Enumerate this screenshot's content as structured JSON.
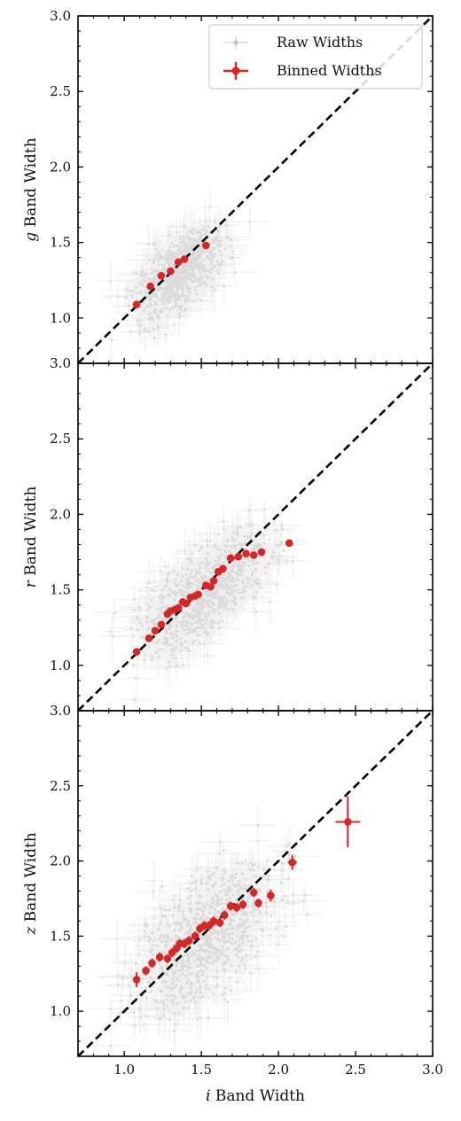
{
  "chart_data": [
    {
      "type": "scatter",
      "xlabel_var": "",
      "xlabel_rest": "",
      "ylabel_var": "g",
      "ylabel_rest": " Band Width",
      "xlim": [
        0.7,
        3.0
      ],
      "ylim": [
        0.7,
        3.0
      ],
      "xticks": [],
      "yticks": [
        1.0,
        1.5,
        2.0,
        2.5,
        3.0
      ],
      "reference_line": "y = x",
      "legend": {
        "placement": "top-right",
        "entries": [
          "Raw Widths",
          "Binned Widths"
        ],
        "colors": [
          "#b5b5b5",
          "#d62728"
        ]
      },
      "raw": {
        "name": "Raw Widths",
        "color": "#808080",
        "center": [
          1.35,
          1.3
        ],
        "spread": 0.13,
        "slope": 0.65,
        "ysd": 0.11,
        "xmin": 0.85,
        "xmax": 1.9
      },
      "series": [
        {
          "name": "Binned Widths",
          "color": "#d62728",
          "x": [
            1.08,
            1.17,
            1.24,
            1.3,
            1.35,
            1.39,
            1.53
          ],
          "y": [
            1.09,
            1.21,
            1.28,
            1.31,
            1.37,
            1.39,
            1.48
          ]
        }
      ]
    },
    {
      "type": "scatter",
      "xlabel_var": "",
      "xlabel_rest": "",
      "ylabel_var": "r",
      "ylabel_rest": " Band Width",
      "xlim": [
        0.7,
        3.0
      ],
      "ylim": [
        0.7,
        3.0
      ],
      "xticks": [],
      "yticks": [
        1.0,
        1.5,
        2.0,
        2.5,
        3.0
      ],
      "reference_line": "y = x",
      "raw": {
        "name": "Raw Widths",
        "color": "#808080",
        "center": [
          1.52,
          1.48
        ],
        "spread": 0.2,
        "slope": 0.7,
        "ysd": 0.14,
        "xmin": 0.9,
        "xmax": 2.6
      },
      "series": [
        {
          "name": "Binned Widths",
          "color": "#d62728",
          "x": [
            1.08,
            1.16,
            1.2,
            1.24,
            1.28,
            1.3,
            1.33,
            1.35,
            1.38,
            1.4,
            1.43,
            1.46,
            1.48,
            1.53,
            1.56,
            1.58,
            1.61,
            1.64,
            1.69,
            1.74,
            1.79,
            1.84,
            1.89,
            2.07
          ],
          "y": [
            1.09,
            1.18,
            1.23,
            1.27,
            1.34,
            1.36,
            1.37,
            1.38,
            1.42,
            1.41,
            1.45,
            1.46,
            1.47,
            1.53,
            1.52,
            1.56,
            1.62,
            1.64,
            1.71,
            1.72,
            1.74,
            1.73,
            1.75,
            1.81
          ]
        }
      ]
    },
    {
      "type": "scatter",
      "xlabel_var": "i",
      "xlabel_rest": " Band Width",
      "ylabel_var": "z",
      "ylabel_rest": " Band Width",
      "xlim": [
        0.7,
        3.0
      ],
      "ylim": [
        0.7,
        3.0
      ],
      "xticks": [
        1.0,
        1.5,
        2.0,
        2.5,
        3.0
      ],
      "yticks": [
        1.0,
        1.5,
        2.0,
        2.5,
        3.0
      ],
      "reference_line": "y = x",
      "raw": {
        "name": "Raw Widths",
        "color": "#808080",
        "center": [
          1.52,
          1.5
        ],
        "spread": 0.22,
        "slope": 0.62,
        "ysd": 0.2,
        "xmin": 0.9,
        "xmax": 2.7
      },
      "series": [
        {
          "name": "Binned Widths",
          "color": "#d62728",
          "x": [
            1.08,
            1.14,
            1.18,
            1.23,
            1.28,
            1.31,
            1.34,
            1.36,
            1.39,
            1.42,
            1.46,
            1.49,
            1.52,
            1.55,
            1.58,
            1.62,
            1.65,
            1.69,
            1.73,
            1.77,
            1.84,
            1.87,
            1.95,
            2.09,
            2.45
          ],
          "y": [
            1.21,
            1.27,
            1.32,
            1.36,
            1.35,
            1.39,
            1.42,
            1.45,
            1.45,
            1.47,
            1.5,
            1.55,
            1.57,
            1.57,
            1.6,
            1.59,
            1.64,
            1.7,
            1.69,
            1.71,
            1.79,
            1.72,
            1.77,
            1.99,
            2.26
          ],
          "xerr": [
            0.02,
            0.02,
            0.02,
            0.02,
            0.02,
            0.02,
            0.02,
            0.02,
            0.02,
            0.02,
            0.02,
            0.02,
            0.02,
            0.02,
            0.02,
            0.02,
            0.02,
            0.02,
            0.02,
            0.02,
            0.02,
            0.02,
            0.02,
            0.03,
            0.08
          ],
          "yerr": [
            0.05,
            0.03,
            0.03,
            0.03,
            0.03,
            0.03,
            0.03,
            0.03,
            0.03,
            0.03,
            0.03,
            0.03,
            0.03,
            0.03,
            0.03,
            0.03,
            0.03,
            0.03,
            0.03,
            0.03,
            0.03,
            0.03,
            0.04,
            0.05,
            0.17
          ]
        }
      ]
    }
  ]
}
